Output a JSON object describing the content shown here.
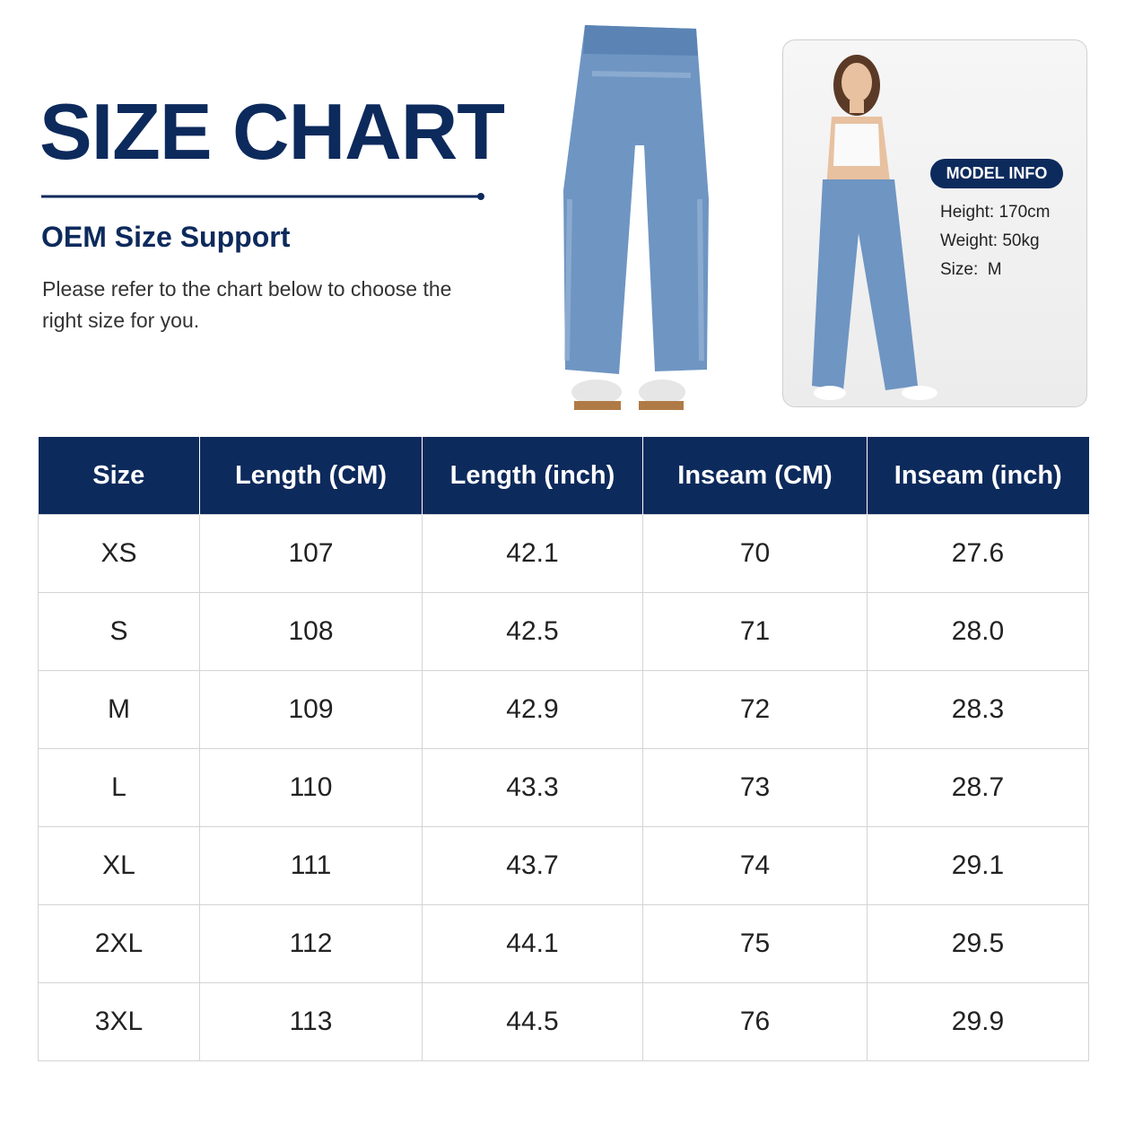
{
  "header": {
    "title": "SIZE CHART",
    "subtitle": "OEM Size Support",
    "description": "Please refer to the chart below to choose the right size for you."
  },
  "model_info": {
    "label": "MODEL INFO",
    "lines": [
      "Height: 170cm",
      "Weight: 50kg",
      "Size:  M"
    ]
  },
  "table": {
    "columns": [
      "Size",
      "Length (CM)",
      "Length (inch)",
      "Inseam (CM)",
      "Inseam (inch)"
    ],
    "rows": [
      [
        "XS",
        "107",
        "42.1",
        "70",
        "27.6"
      ],
      [
        "S",
        "108",
        "42.5",
        "71",
        "28.0"
      ],
      [
        "M",
        "109",
        "42.9",
        "72",
        "28.3"
      ],
      [
        "L",
        "110",
        "43.3",
        "73",
        "28.7"
      ],
      [
        "XL",
        "111",
        "43.7",
        "74",
        "29.1"
      ],
      [
        "2XL",
        "112",
        "44.1",
        "75",
        "29.5"
      ],
      [
        "3XL",
        "113",
        "44.5",
        "76",
        "29.9"
      ]
    ]
  }
}
